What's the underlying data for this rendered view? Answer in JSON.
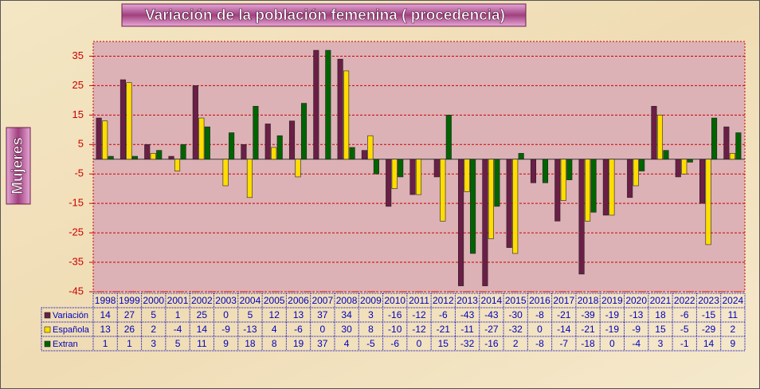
{
  "chart_data": {
    "type": "bar",
    "title": "Variación de la población femenina ( procedencia)",
    "ylabel": "Mujeres",
    "categories": [
      "1998",
      "1999",
      "2000",
      "2001",
      "2002",
      "2003",
      "2004",
      "2005",
      "2006",
      "2007",
      "2008",
      "2009",
      "2010",
      "2011",
      "2012",
      "2013",
      "2014",
      "2015",
      "2016",
      "2017",
      "2018",
      "2019",
      "2020",
      "2021",
      "2022",
      "2023",
      "2024"
    ],
    "series": [
      {
        "name": "Variación",
        "color": "#6b1e46",
        "values": [
          14,
          27,
          5,
          1,
          25,
          0,
          5,
          12,
          13,
          37,
          34,
          3,
          -16,
          -12,
          -6,
          -43,
          -43,
          -30,
          -8,
          -21,
          -39,
          -19,
          -13,
          18,
          -6,
          -15,
          11
        ]
      },
      {
        "name": "Española",
        "color": "#ffdd00",
        "values": [
          13,
          26,
          2,
          -4,
          14,
          -9,
          -13,
          4,
          -6,
          0,
          30,
          8,
          -10,
          -12,
          -21,
          -11,
          -27,
          -32,
          0,
          -14,
          -21,
          -19,
          -9,
          15,
          -5,
          -29,
          2
        ]
      },
      {
        "name": "Extran",
        "color": "#006400",
        "values": [
          1,
          1,
          3,
          5,
          11,
          9,
          18,
          8,
          19,
          37,
          4,
          -5,
          -6,
          0,
          15,
          -32,
          -16,
          2,
          -8,
          -7,
          -18,
          0,
          -4,
          3,
          -1,
          14,
          9
        ]
      }
    ],
    "ylim": [
      -45,
      40
    ],
    "yticks": [
      -45,
      -35,
      -25,
      -15,
      -5,
      5,
      15,
      25,
      35
    ],
    "grid": true
  }
}
